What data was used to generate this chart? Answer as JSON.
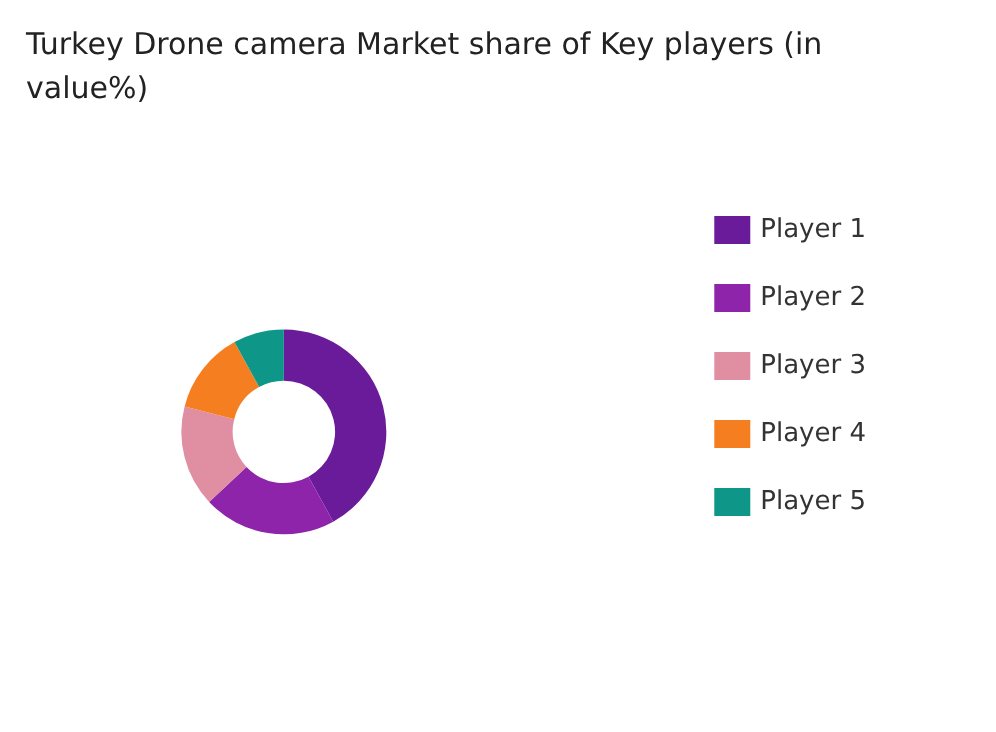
{
  "chart_data": {
    "type": "donut",
    "title": "Turkey Drone camera Market share of Key players (in value%)",
    "categories": [
      "Player 1",
      "Player 2",
      "Player 3",
      "Player 4",
      "Player 5"
    ],
    "values": [
      42,
      21,
      16,
      13,
      8
    ],
    "colors": [
      "#6a1b9a",
      "#8e24aa",
      "#e08fa3",
      "#f57f20",
      "#0e9688"
    ],
    "legend": "right"
  }
}
